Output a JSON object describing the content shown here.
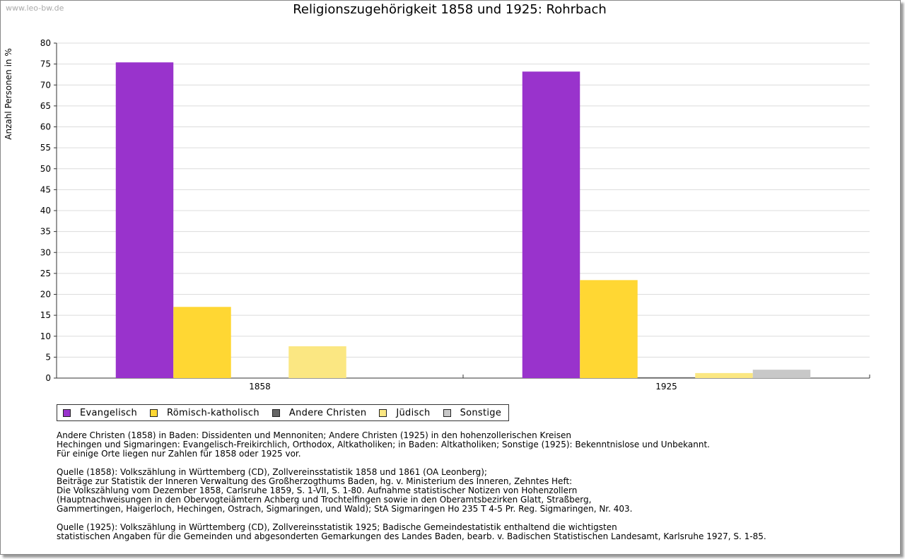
{
  "watermark": "www.leo-bw.de",
  "colors": {
    "evangelisch": "#9933cc",
    "roemisch_katholisch": "#ffd733",
    "andere_christen": "#666666",
    "juedisch": "#fbe782",
    "sonstige": "#c8c8c8"
  },
  "chart_data": {
    "type": "bar",
    "title": "Religionszugehörigkeit 1858 und 1925: Rohrbach",
    "xlabel": "",
    "ylabel": "Anzahl Personen in %",
    "ylim": [
      0,
      80
    ],
    "yticks": [
      0,
      5,
      10,
      15,
      20,
      25,
      30,
      35,
      40,
      45,
      50,
      55,
      60,
      65,
      70,
      75,
      80
    ],
    "grid": true,
    "legend_position": "bottom",
    "categories": [
      "1858",
      "1925"
    ],
    "series": [
      {
        "name": "Evangelisch",
        "color": "#9933cc",
        "values": [
          75.4,
          73.2
        ]
      },
      {
        "name": "Römisch-katholisch",
        "color": "#ffd733",
        "values": [
          17.0,
          23.4
        ]
      },
      {
        "name": "Andere Christen",
        "color": "#666666",
        "values": [
          0,
          0.2
        ]
      },
      {
        "name": "Jüdisch",
        "color": "#fbe782",
        "values": [
          7.6,
          1.2
        ]
      },
      {
        "name": "Sonstige",
        "color": "#c8c8c8",
        "values": [
          0,
          2.0
        ]
      }
    ]
  },
  "notes": [
    "Andere Christen (1858) in Baden: Dissidenten und Mennoniten; Andere Christen (1925) in den hohenzollerischen Kreisen\nHechingen und Sigmaringen: Evangelisch-Freikirchlich, Orthodox, Altkatholiken; in Baden: Altkatholiken; Sonstige (1925): Bekenntnislose und Unbekannt.\nFür einige Orte liegen nur Zahlen für 1858 oder 1925 vor.",
    "Quelle (1858): Volkszählung in Württemberg (CD), Zollvereinsstatistik 1858 und 1861 (OA Leonberg);\nBeiträge zur Statistik der Inneren Verwaltung des Großherzogthums Baden, hg. v. Ministerium des Inneren, Zehntes Heft:\nDie Volkszählung vom Dezember 1858, Carlsruhe 1859, S. 1-VII, S. 1-80. Aufnahme statistischer Notizen von Hohenzollern\n(Hauptnachweisungen in den Obervogteiämtern Achberg und Trochtelfingen sowie in den Oberamtsbezirken Glatt, Straßberg,\nGammertingen, Haigerloch, Hechingen, Ostrach, Sigmaringen, und Wald); StA Sigmaringen Ho 235 T 4-5 Pr. Reg. Sigmaringen, Nr. 403.",
    "Quelle (1925): Volkszählung in Württemberg (CD), Zollvereinsstatistik 1925; Badische Gemeindestatistik enthaltend die wichtigsten\nstatistischen Angaben für die Gemeinden und abgesonderten Gemarkungen des Landes Baden, bearb. v. Badischen Statistischen Landesamt, Karlsruhe 1927, S. 1-85."
  ]
}
